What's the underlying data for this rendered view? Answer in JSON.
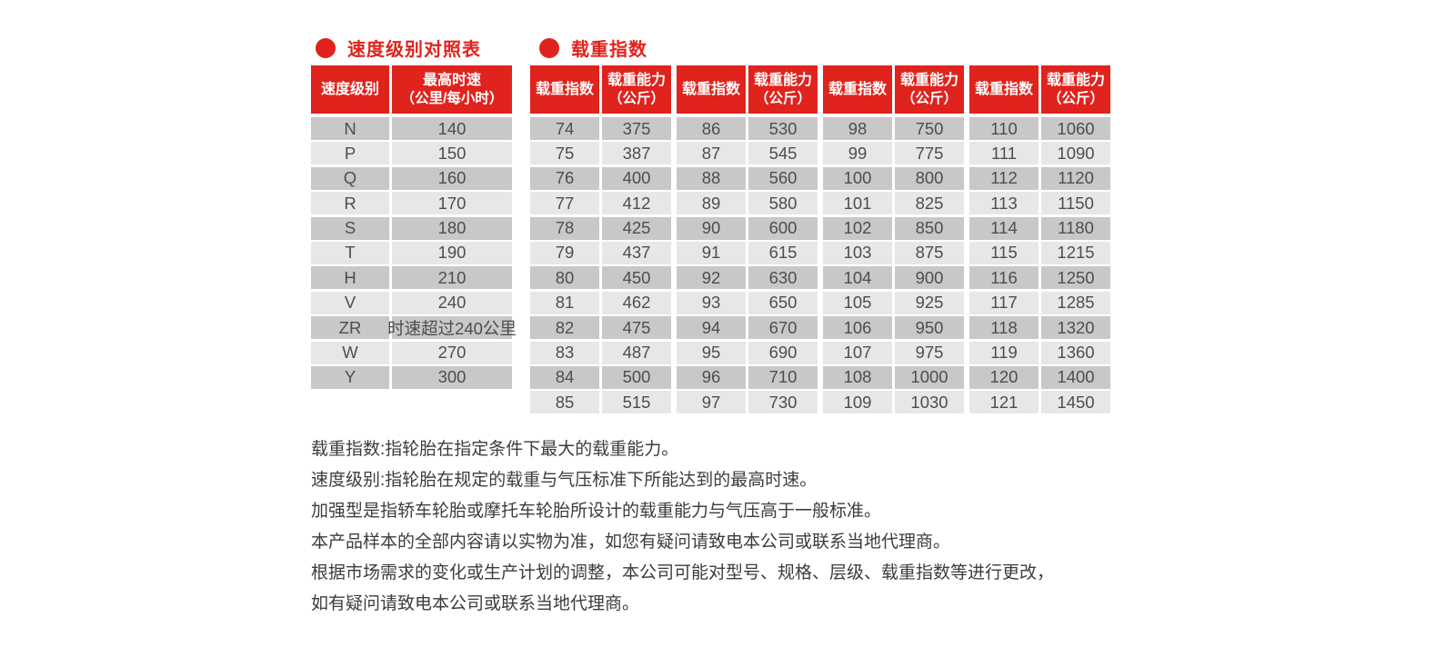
{
  "colors": {
    "accent_red": "#e0231d",
    "row_dark": "#c9c8c8",
    "row_light": "#e8e7e7",
    "cell_text": "#4e4e4e",
    "note_text": "#3c3c3c"
  },
  "speed_table": {
    "title": "速度级别对照表",
    "col1_header": "速度级别",
    "col2_header_line1": "最高时速",
    "col2_header_line2": "（公里/每小时）",
    "rows": [
      [
        "N",
        "140"
      ],
      [
        "P",
        "150"
      ],
      [
        "Q",
        "160"
      ],
      [
        "R",
        "170"
      ],
      [
        "S",
        "180"
      ],
      [
        "T",
        "190"
      ],
      [
        "H",
        "210"
      ],
      [
        "V",
        "240"
      ],
      [
        "ZR",
        "时速超过240公里"
      ],
      [
        "W",
        "270"
      ],
      [
        "Y",
        "300"
      ]
    ]
  },
  "load_table": {
    "title": "载重指数",
    "index_header": "载重指数",
    "capacity_header_line1": "载重能力",
    "capacity_header_line2": "（公斤）",
    "groups": [
      [
        [
          "74",
          "375"
        ],
        [
          "75",
          "387"
        ],
        [
          "76",
          "400"
        ],
        [
          "77",
          "412"
        ],
        [
          "78",
          "425"
        ],
        [
          "79",
          "437"
        ],
        [
          "80",
          "450"
        ],
        [
          "81",
          "462"
        ],
        [
          "82",
          "475"
        ],
        [
          "83",
          "487"
        ],
        [
          "84",
          "500"
        ],
        [
          "85",
          "515"
        ]
      ],
      [
        [
          "86",
          "530"
        ],
        [
          "87",
          "545"
        ],
        [
          "88",
          "560"
        ],
        [
          "89",
          "580"
        ],
        [
          "90",
          "600"
        ],
        [
          "91",
          "615"
        ],
        [
          "92",
          "630"
        ],
        [
          "93",
          "650"
        ],
        [
          "94",
          "670"
        ],
        [
          "95",
          "690"
        ],
        [
          "96",
          "710"
        ],
        [
          "97",
          "730"
        ]
      ],
      [
        [
          "98",
          "750"
        ],
        [
          "99",
          "775"
        ],
        [
          "100",
          "800"
        ],
        [
          "101",
          "825"
        ],
        [
          "102",
          "850"
        ],
        [
          "103",
          "875"
        ],
        [
          "104",
          "900"
        ],
        [
          "105",
          "925"
        ],
        [
          "106",
          "950"
        ],
        [
          "107",
          "975"
        ],
        [
          "108",
          "1000"
        ],
        [
          "109",
          "1030"
        ]
      ],
      [
        [
          "110",
          "1060"
        ],
        [
          "111",
          "1090"
        ],
        [
          "112",
          "1120"
        ],
        [
          "113",
          "1150"
        ],
        [
          "114",
          "1180"
        ],
        [
          "115",
          "1215"
        ],
        [
          "116",
          "1250"
        ],
        [
          "117",
          "1285"
        ],
        [
          "118",
          "1320"
        ],
        [
          "119",
          "1360"
        ],
        [
          "120",
          "1400"
        ],
        [
          "121",
          "1450"
        ]
      ]
    ]
  },
  "notes": [
    "载重指数:指轮胎在指定条件下最大的载重能力。",
    "速度级别:指轮胎在规定的载重与气压标准下所能达到的最高时速。",
    "加强型是指轿车轮胎或摩托车轮胎所设计的载重能力与气压高于一般标准。",
    "本产品样本的全部内容请以实物为准，如您有疑问请致电本公司或联系当地代理商。",
    "根据市场需求的变化或生产计划的调整，本公司可能对型号、规格、层级、载重指数等进行更改，",
    "如有疑问请致电本公司或联系当地代理商。"
  ]
}
